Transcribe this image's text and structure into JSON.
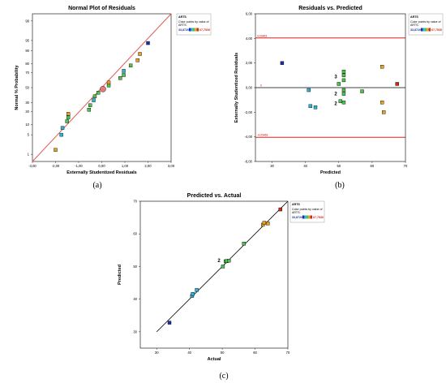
{
  "legend": {
    "title": "ARTS",
    "caption_line1": "Color points by value of",
    "caption_line2": "ARTS:",
    "min_label": "33,8720",
    "max_label": "67,7530",
    "colors": [
      "#1a2fa8",
      "#2bb3d8",
      "#4ec24e",
      "#e6a02a",
      "#c72a1a"
    ]
  },
  "chart_data": [
    {
      "type": "scatter",
      "title": "Normal Plot of Residuals",
      "xlabel": "Externally Studentized Residuals",
      "ylabel": "Normal % Probability",
      "caption": "(a)",
      "xlim": [
        -3.0,
        3.0
      ],
      "xticks": [
        "-3,00",
        "-2,00",
        "-1,00",
        "0,00",
        "1,00",
        "2,00",
        "3,00"
      ],
      "yticks": [
        "1",
        "5",
        "10",
        "20",
        "30",
        "50",
        "70",
        "80",
        "90",
        "95",
        "99"
      ],
      "series": [
        {
          "points": [
            {
              "x": -2.0,
              "p": 1.5,
              "c": "#e6a02a"
            },
            {
              "x": -1.75,
              "p": 5,
              "c": "#2bb3d8"
            },
            {
              "x": -1.7,
              "p": 8,
              "c": "#2bb3d8"
            },
            {
              "x": -1.5,
              "p": 12,
              "c": "#4ec24e"
            },
            {
              "x": -1.45,
              "p": 15,
              "c": "#4ec24e"
            },
            {
              "x": -1.45,
              "p": 18,
              "c": "#e6a02a"
            },
            {
              "x": -0.55,
              "p": 22,
              "c": "#4ec24e"
            },
            {
              "x": -0.5,
              "p": 27,
              "c": "#4ec24e"
            },
            {
              "x": -0.35,
              "p": 33,
              "c": "#2bb3d8"
            },
            {
              "x": -0.3,
              "p": 38,
              "c": "#4ec24e"
            },
            {
              "x": -0.15,
              "p": 43,
              "c": "#4ec24e"
            },
            {
              "x": 0.05,
              "p": 48,
              "c": "#c72a1a",
              "highlight": true
            },
            {
              "x": 0.3,
              "p": 53,
              "c": "#4ec24e"
            },
            {
              "x": 0.3,
              "p": 57,
              "c": "#e6a02a"
            },
            {
              "x": 0.8,
              "p": 63,
              "c": "#4ec24e"
            },
            {
              "x": 0.95,
              "p": 67,
              "c": "#4ec24e"
            },
            {
              "x": 0.95,
              "p": 72,
              "c": "#2bb3d8"
            },
            {
              "x": 1.25,
              "p": 78,
              "c": "#4ec24e"
            },
            {
              "x": 1.55,
              "p": 83,
              "c": "#e6a02a"
            },
            {
              "x": 1.65,
              "p": 88,
              "c": "#e6a02a"
            },
            {
              "x": 2.0,
              "p": 94,
              "c": "#1a2fa8"
            }
          ]
        }
      ],
      "fit_line": {
        "x": [
          -3.0,
          3.0
        ],
        "p": [
          0.5,
          99.5
        ]
      }
    },
    {
      "type": "scatter",
      "title": "Residuals vs. Predicted",
      "xlabel": "Predicted",
      "ylabel": "Externally Studentized Residuals",
      "caption": "(b)",
      "xlim": [
        25,
        70
      ],
      "ylim": [
        -6,
        6
      ],
      "xticks": [
        "30",
        "40",
        "50",
        "60",
        "70"
      ],
      "yticks": [
        "-6,00",
        "-4,00",
        "-2,00",
        "0,00",
        "2,00",
        "4,00",
        "6,00"
      ],
      "limit_upper": {
        "y": 4.03463,
        "label": "4,03463"
      },
      "limit_lower": {
        "y": -4.03463,
        "label": "-4,03463"
      },
      "zero_label": "0",
      "points": [
        {
          "x": 33,
          "y": 2.0,
          "c": "#1a2fa8"
        },
        {
          "x": 41,
          "y": -0.2,
          "c": "#2bb3d8"
        },
        {
          "x": 41.5,
          "y": -1.5,
          "c": "#2bb3d8"
        },
        {
          "x": 43,
          "y": -1.6,
          "c": "#2bb3d8"
        },
        {
          "x": 50,
          "y": 0.3,
          "c": "#4ec24e"
        },
        {
          "x": 50.5,
          "y": -1.1,
          "c": "#4ec24e"
        },
        {
          "x": 51.5,
          "y": 0.6,
          "c": "#4ec24e"
        },
        {
          "x": 51.5,
          "y": 1.0,
          "c": "#4ec24e"
        },
        {
          "x": 51.5,
          "y": 1.3,
          "c": "#4ec24e"
        },
        {
          "x": 51.5,
          "y": -0.2,
          "c": "#4ec24e"
        },
        {
          "x": 51.5,
          "y": -0.5,
          "c": "#4ec24e"
        },
        {
          "x": 51.5,
          "y": -1.2,
          "c": "#4ec24e"
        },
        {
          "x": 57,
          "y": -0.3,
          "c": "#4ec24e"
        },
        {
          "x": 63,
          "y": 1.7,
          "c": "#e6a02a"
        },
        {
          "x": 63,
          "y": -1.2,
          "c": "#e6a02a"
        },
        {
          "x": 63.5,
          "y": -2.0,
          "c": "#e6a02a"
        },
        {
          "x": 67.5,
          "y": 0.3,
          "c": "#c72a1a"
        }
      ],
      "annotations": [
        {
          "text": "3",
          "x": 49.5,
          "y": 0.9
        },
        {
          "text": "2",
          "x": 49.5,
          "y": -0.5
        },
        {
          "text": "2",
          "x": 49.5,
          "y": -1.3
        }
      ]
    },
    {
      "type": "scatter",
      "title": "Predicted vs. Actual",
      "xlabel": "Actual",
      "ylabel": "Predicted",
      "caption": "(c)",
      "xlim": [
        25,
        70
      ],
      "ylim": [
        25,
        70
      ],
      "xticks": [
        "30",
        "40",
        "50",
        "60",
        "70"
      ],
      "yticks": [
        "30",
        "40",
        "50",
        "60",
        "70"
      ],
      "points": [
        {
          "x": 33.9,
          "y": 32.8,
          "c": "#1a2fa8"
        },
        {
          "x": 40.8,
          "y": 41.0,
          "c": "#2bb3d8"
        },
        {
          "x": 41.0,
          "y": 41.6,
          "c": "#2bb3d8"
        },
        {
          "x": 42.2,
          "y": 42.8,
          "c": "#2bb3d8"
        },
        {
          "x": 50.2,
          "y": 50.0,
          "c": "#4ec24e"
        },
        {
          "x": 51.0,
          "y": 51.6,
          "c": "#4ec24e"
        },
        {
          "x": 51.4,
          "y": 51.7,
          "c": "#4ec24e"
        },
        {
          "x": 52.0,
          "y": 51.8,
          "c": "#4ec24e"
        },
        {
          "x": 56.6,
          "y": 57.0,
          "c": "#4ec24e"
        },
        {
          "x": 62.4,
          "y": 62.8,
          "c": "#e6a02a"
        },
        {
          "x": 62.8,
          "y": 63.4,
          "c": "#e6a02a"
        },
        {
          "x": 63.9,
          "y": 63.2,
          "c": "#e6a02a"
        },
        {
          "x": 67.7,
          "y": 67.5,
          "c": "#c72a1a"
        }
      ],
      "annotations": [
        {
          "text": "2",
          "x": 49.0,
          "y": 51.8
        }
      ],
      "fit_line": {
        "x": [
          30,
          70
        ],
        "y": [
          30,
          70
        ]
      }
    }
  ]
}
